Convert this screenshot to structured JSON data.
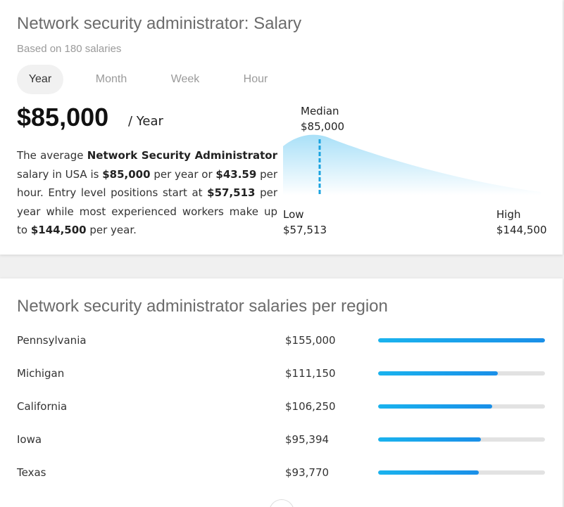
{
  "overview": {
    "title": "Network security administrator: Salary",
    "subtitle": "Based on 180 salaries",
    "tabs": [
      {
        "label": "Year",
        "active": true
      },
      {
        "label": "Month",
        "active": false
      },
      {
        "label": "Week",
        "active": false
      },
      {
        "label": "Hour",
        "active": false
      }
    ],
    "amount": "$85,000",
    "period": "/ Year",
    "description": {
      "t1": "The average ",
      "b1": "Network Security Administrator",
      "t2": " salary in USA is ",
      "b2": "$85,000",
      "t3": " per year or ",
      "b3": "$43.59",
      "t4": " per hour. Entry level positions start at ",
      "b4": "$57,513",
      "t5": " per year while most experienced workers make up to ",
      "b5": "$144,500",
      "t6": " per year."
    },
    "distribution": {
      "median_title": "Median",
      "median_value": "$85,000",
      "low_title": "Low",
      "low_value": "$57,513",
      "high_title": "High",
      "high_value": "$144,500",
      "curve_color": "#b8e6fa",
      "median_line_color": "#1aa3e0"
    }
  },
  "regions": {
    "title": "Network security administrator salaries per region",
    "bar_max": 155000,
    "items": [
      {
        "name": "Pennsylvania",
        "salary": "$155,000",
        "value": 155000
      },
      {
        "name": "Michigan",
        "salary": "$111,150",
        "value": 111150
      },
      {
        "name": "California",
        "salary": "$106,250",
        "value": 106250
      },
      {
        "name": "Iowa",
        "salary": "$95,394",
        "value": 95394
      },
      {
        "name": "Texas",
        "salary": "$93,770",
        "value": 93770
      }
    ]
  }
}
